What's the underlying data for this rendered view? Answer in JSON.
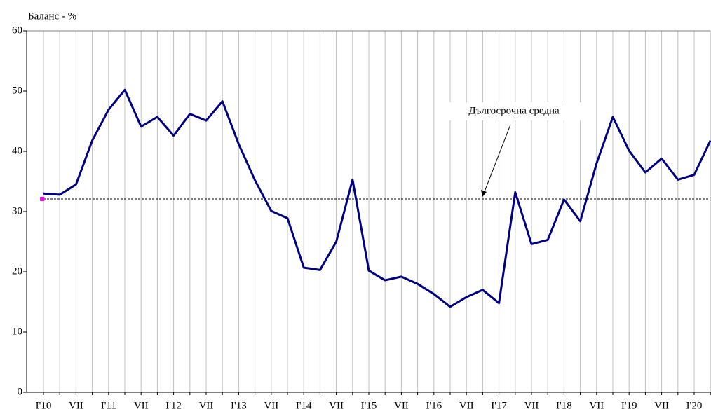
{
  "chart_data": {
    "type": "line",
    "y_label": "Баланс - %",
    "categories": [
      "I'10",
      null,
      "VII",
      null,
      "I'11",
      null,
      "VII",
      null,
      "I'12",
      null,
      "VII",
      null,
      "I'13",
      null,
      "VII",
      null,
      "I'14",
      null,
      "VII",
      null,
      "I'15",
      null,
      "VII",
      null,
      "I'16",
      null,
      "VII",
      null,
      "I'17",
      null,
      "VII",
      null,
      "I'18",
      null,
      "VII",
      null,
      "I'19",
      null,
      "VII",
      null,
      "I'20",
      null
    ],
    "series": [
      {
        "color": "#000080",
        "values": [
          33.0,
          32.8,
          34.5,
          41.8,
          46.9,
          50.2,
          44.1,
          45.7,
          42.6,
          46.2,
          45.1,
          48.3,
          41.2,
          35.2,
          30.1,
          28.9,
          20.7,
          20.3,
          25.0,
          35.3,
          20.2,
          18.6,
          19.2,
          18.0,
          16.3,
          14.2,
          15.8,
          17.0,
          14.8,
          33.2,
          24.6,
          25.3,
          32.0,
          28.4,
          38.0,
          45.7,
          40.1,
          36.5,
          38.8,
          35.3,
          36.1,
          41.8
        ]
      }
    ],
    "average": {
      "value": 32.1,
      "label": "Дългосрочна средна",
      "marker_color": "#ff00ff"
    },
    "ylim": [
      0,
      60
    ],
    "yticks": [
      0,
      10,
      20,
      30,
      40,
      50,
      60
    ],
    "grid": "x"
  }
}
